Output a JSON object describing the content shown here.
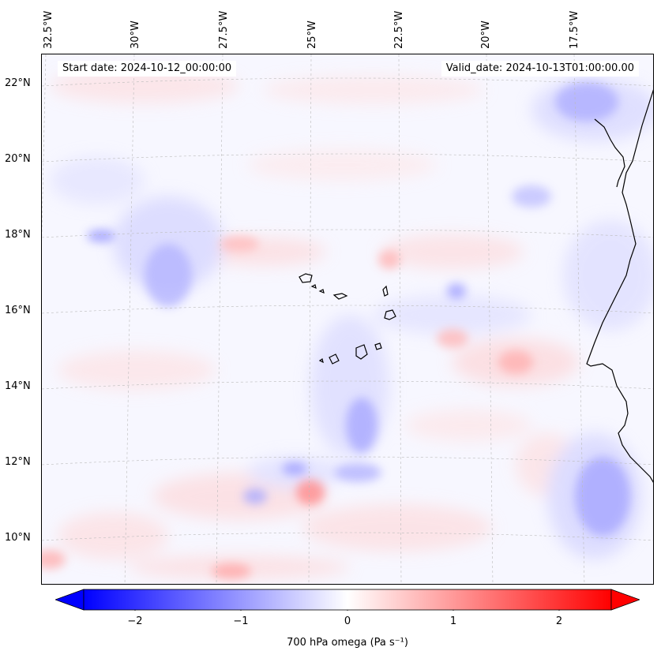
{
  "map": {
    "lon_labels": [
      "32.5°W",
      "30°W",
      "27.5°W",
      "25°W",
      "22.5°W",
      "20°W",
      "17.5°W"
    ],
    "lat_labels": [
      "22°N",
      "20°N",
      "18°N",
      "16°N",
      "14°N",
      "12°N",
      "10°N"
    ],
    "start_date": "Start date: 2024-10-12_00:00:00",
    "valid_date": "Valid_date: 2024-10-13T01:00:00.00",
    "coastline_color": "#000000",
    "gridline_color": "#bbbbbb"
  },
  "colorbar": {
    "cmap": "bwr",
    "ticks": [
      "−2",
      "−1",
      "0",
      "1",
      "2"
    ],
    "tick_values": [
      -2,
      -1,
      0,
      1,
      2
    ],
    "vmin": -2.5,
    "vmax": 2.5,
    "extend": "both",
    "label": "700 hPa omega (Pa s⁻¹)"
  }
}
